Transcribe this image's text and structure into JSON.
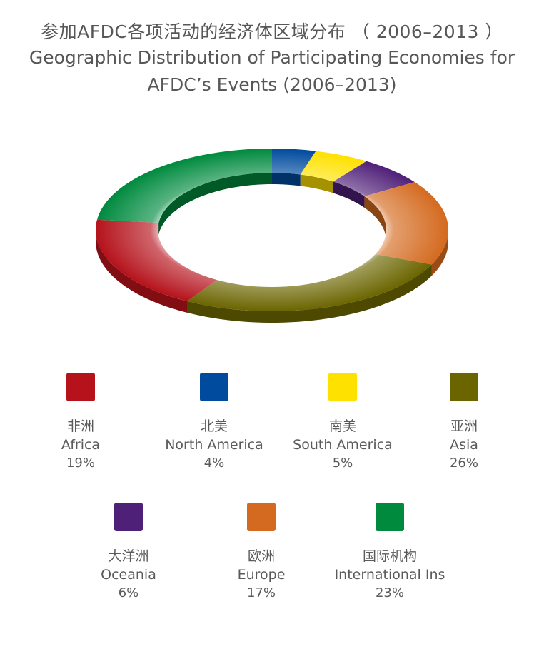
{
  "title": {
    "cn": "参加AFDC各项活动的经济体区域分布 （ 2006–2013 ）",
    "en": "Geographic Distribution of Participating Economies for AFDC’s Events (2006–2013)"
  },
  "colors": {
    "africa": "#b5121b",
    "north_america": "#004b9e",
    "south_america": "#ffe100",
    "asia": "#6b6500",
    "oceania": "#4f2078",
    "europe": "#d46a1f",
    "international": "#008a3e"
  },
  "chart_data": {
    "type": "pie",
    "style": "3d-donut",
    "title": "Geographic Distribution of Participating Economies for AFDC’s Events (2006–2013)",
    "categories": [
      "North America",
      "South America",
      "Oceania",
      "Europe",
      "Asia",
      "Africa",
      "International Ins"
    ],
    "values": [
      4,
      5,
      6,
      17,
      26,
      19,
      23
    ],
    "unit": "%"
  },
  "legend": [
    {
      "key": "africa",
      "cn": "非洲",
      "en": "Africa",
      "value": "19%"
    },
    {
      "key": "north_america",
      "cn": "北美",
      "en": "North America",
      "value": "4%"
    },
    {
      "key": "south_america",
      "cn": "南美",
      "en": "South America",
      "value": "5%"
    },
    {
      "key": "asia",
      "cn": "亚洲",
      "en": "Asia",
      "value": "26%"
    },
    {
      "key": "oceania",
      "cn": "大洋洲",
      "en": "Oceania",
      "value": "6%"
    },
    {
      "key": "europe",
      "cn": "欧洲",
      "en": "Europe",
      "value": "17%"
    },
    {
      "key": "international",
      "cn": "国际机构",
      "en": "International Ins",
      "value": "23%"
    }
  ]
}
